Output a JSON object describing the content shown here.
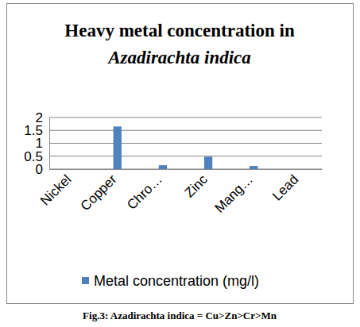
{
  "chart_data": {
    "type": "bar",
    "title": [
      "Heavy metal concentration in",
      "Azadirachta indica"
    ],
    "categories": [
      "Nickel",
      "Copper",
      "Chro…",
      "Zinc",
      "Mang…",
      "Lead"
    ],
    "series": [
      {
        "name": "Metal concentration (mg/l)",
        "color": "#4f81bd",
        "values": [
          0,
          1.65,
          0.15,
          0.48,
          0.12,
          0
        ]
      }
    ],
    "ylim": [
      0,
      2
    ],
    "yticks": [
      0,
      0.5,
      1,
      1.5,
      2
    ],
    "grid": true,
    "legend": "bottom",
    "caption": "Fig.3: Azadirachta indica = Cu>Zn>Cr>Mn"
  }
}
